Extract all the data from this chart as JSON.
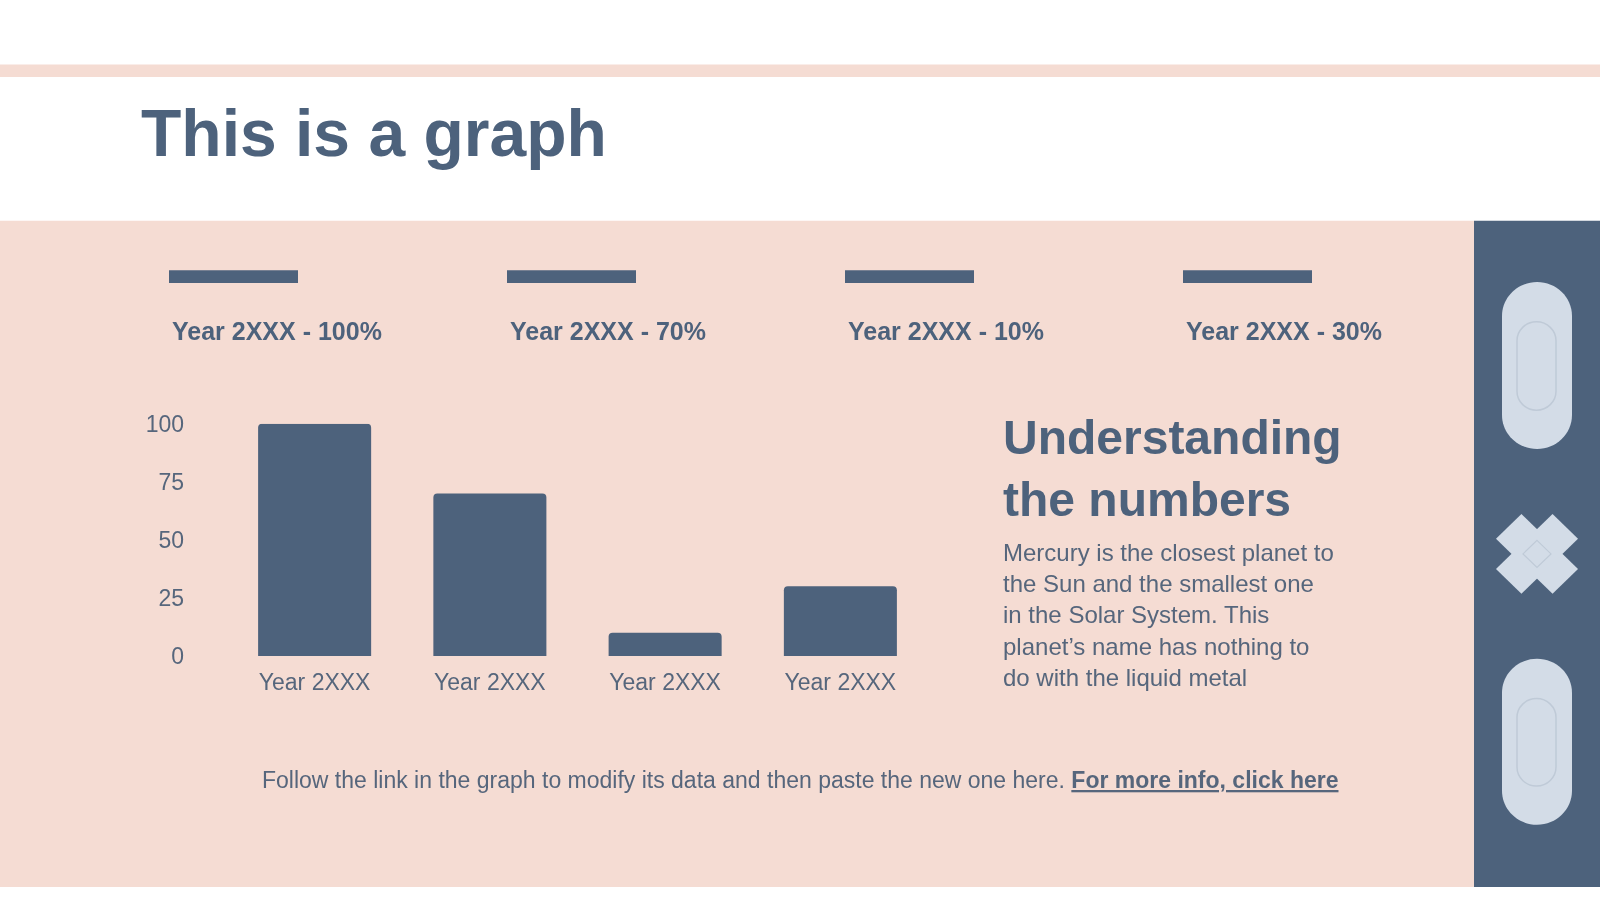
{
  "chart_data": {
    "type": "bar",
    "title": "This is a graph",
    "categories": [
      "Year 2XXX",
      "Year 2XXX",
      "Year 2XXX",
      "Year 2XXX"
    ],
    "values": [
      100,
      70,
      10,
      30
    ],
    "color": "#4d627c",
    "ylim": [
      0,
      100
    ],
    "yticks": [
      0,
      25,
      50,
      75,
      100
    ],
    "annotations": [
      "Year 2XXX - 100%",
      "Year 2XXX - 70%",
      "Year 2XXX - 10%",
      "Year 2XXX - 30%",
      "Understanding\nthe numbers",
      "Mercury is the closest planet to\nthe Sun and the smallest one\nin the Solar System. This\nplanet’s name has nothing to\ndo with the liquid metal",
      "Follow the link in the graph to modify its data and then paste the new one here.",
      "For more info, click here"
    ]
  }
}
